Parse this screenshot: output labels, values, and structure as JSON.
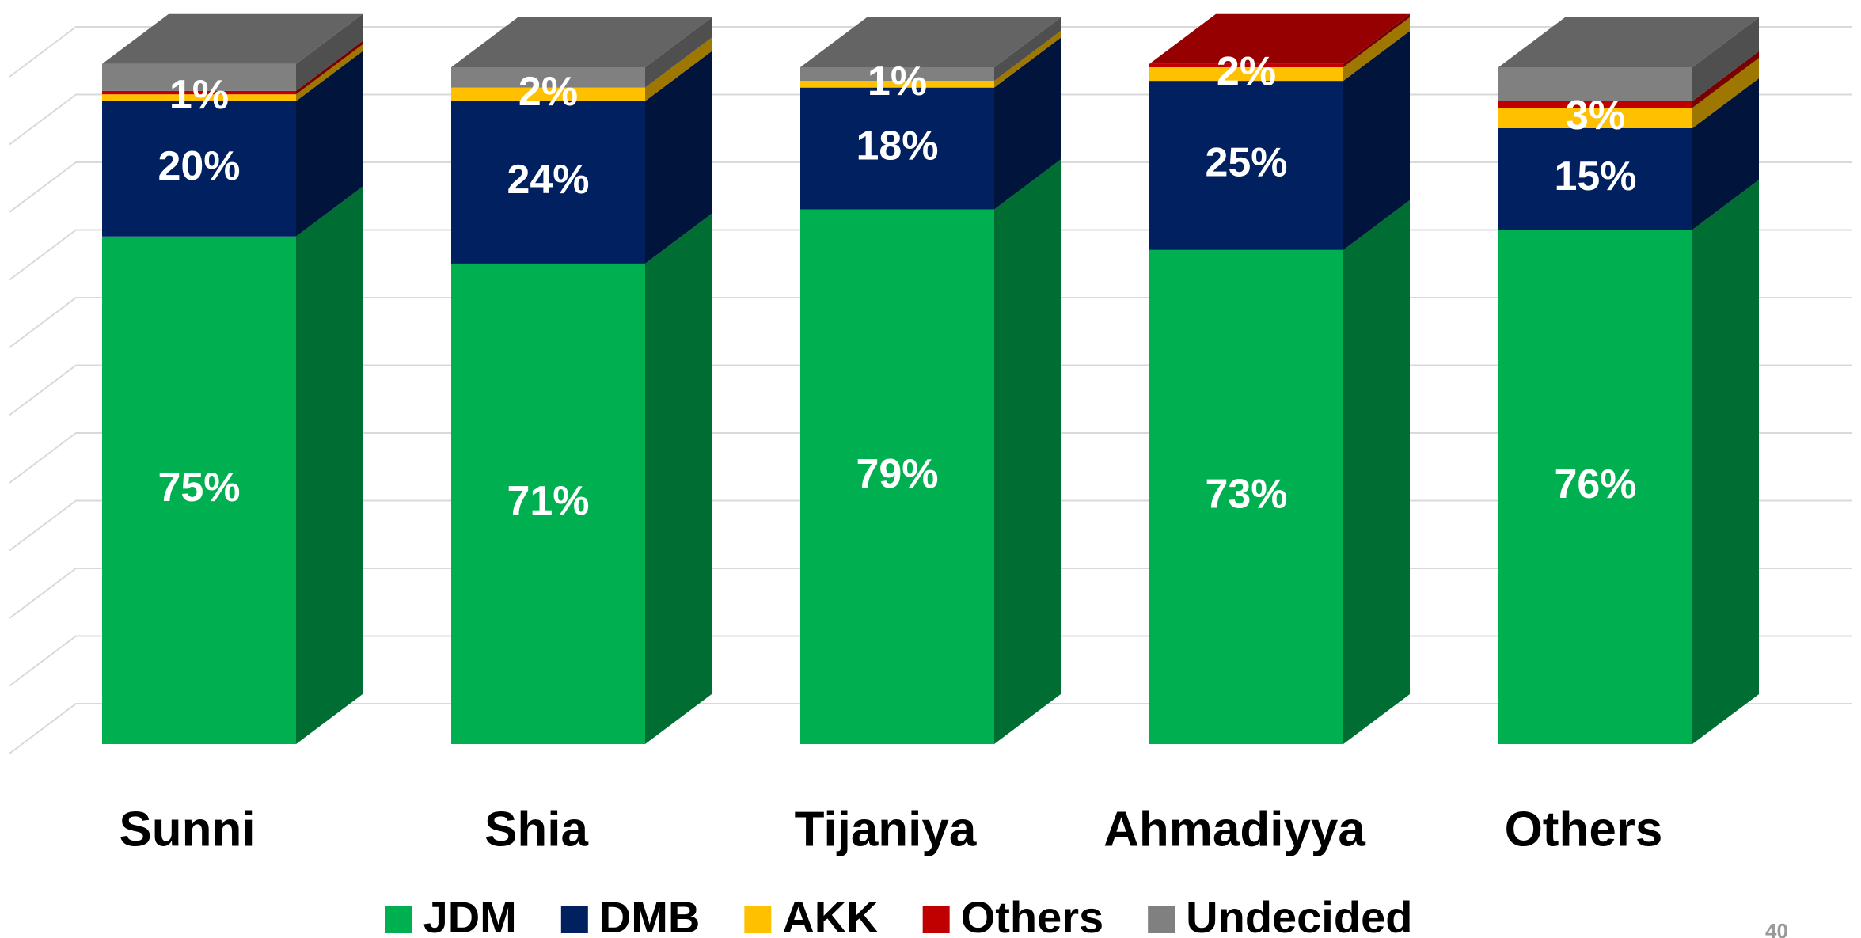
{
  "chart_data": {
    "type": "bar3d_stacked",
    "categories": [
      "Sunni",
      "Shia",
      "Tijaniya",
      "Ahmadiyya",
      "Others"
    ],
    "series": [
      {
        "name": "JDM",
        "color": "#00b050",
        "values": [
          75,
          71,
          79,
          73,
          76
        ],
        "value_labels": [
          "75%",
          "71%",
          "79%",
          "73%",
          "76%"
        ]
      },
      {
        "name": "DMB",
        "color": "#002060",
        "values": [
          20,
          24,
          18,
          25,
          15
        ],
        "value_labels": [
          "20%",
          "24%",
          "18%",
          "25%",
          "15%"
        ]
      },
      {
        "name": "AKK",
        "color": "#ffc000",
        "values": [
          1,
          2,
          1,
          2,
          3
        ],
        "value_labels": [
          "1%",
          "2%",
          "1%",
          "2%",
          "3%"
        ]
      },
      {
        "name": "Others",
        "color": "#c00000",
        "values": [
          0.5,
          0,
          0,
          0.5,
          1
        ]
      },
      {
        "name": "Undecided",
        "color": "#808080",
        "values": [
          4,
          3,
          2,
          0,
          5
        ]
      }
    ],
    "ylim": [
      0,
      100
    ],
    "yticks": [
      0,
      10,
      20,
      30,
      40,
      50,
      60,
      70,
      80,
      90,
      100
    ],
    "grid": true,
    "legend": "bottom",
    "page_number": "40"
  }
}
